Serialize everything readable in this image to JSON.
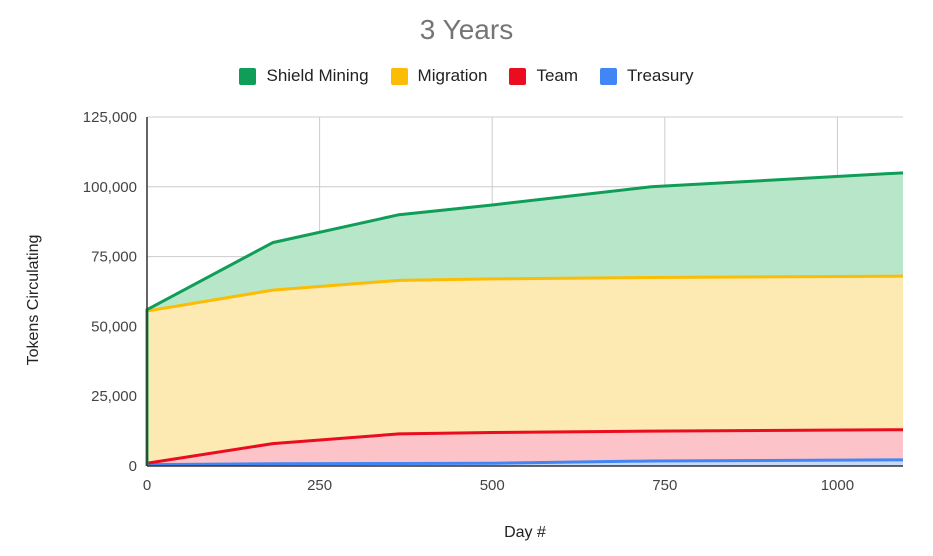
{
  "chart_data": {
    "type": "area",
    "stacked": true,
    "title": "3 Years",
    "xlabel": "Day #",
    "ylabel": "Tokens Circulating",
    "xlim": [
      0,
      1095
    ],
    "ylim": [
      0,
      125000
    ],
    "x_ticks": [
      0,
      250,
      500,
      750,
      1000
    ],
    "x_tick_labels": [
      "0",
      "250",
      "500",
      "750",
      "1000"
    ],
    "y_ticks": [
      0,
      25000,
      50000,
      75000,
      100000,
      125000
    ],
    "y_tick_labels": [
      "0",
      "25,000",
      "50,000",
      "75,000",
      "100,000",
      "125,000"
    ],
    "grid": true,
    "legend_position": "top",
    "x": [
      0,
      182,
      365,
      500,
      730,
      1095
    ],
    "series": [
      {
        "name": "Treasury",
        "color": "#4285f4",
        "fill": "#c6d9fb",
        "values": [
          500,
          800,
          900,
          1000,
          1800,
          2200
        ]
      },
      {
        "name": "Team",
        "color": "#ea0d20",
        "fill": "#fcc4c9",
        "values": [
          500,
          7200,
          10600,
          11000,
          10700,
          10800
        ]
      },
      {
        "name": "Migration",
        "color": "#fbbc04",
        "fill": "#fde9b2",
        "values": [
          54500,
          55000,
          55000,
          55000,
          55000,
          55000
        ]
      },
      {
        "name": "Shield Mining",
        "color": "#0f9d58",
        "fill": "#b8e6c9",
        "values": [
          500,
          17000,
          23500,
          26500,
          32500,
          37000
        ]
      }
    ]
  },
  "legend": [
    {
      "label": "Shield Mining",
      "color": "#0f9d58"
    },
    {
      "label": "Migration",
      "color": "#fbbc04"
    },
    {
      "label": "Team",
      "color": "#ea0d20"
    },
    {
      "label": "Treasury",
      "color": "#4285f4"
    }
  ]
}
